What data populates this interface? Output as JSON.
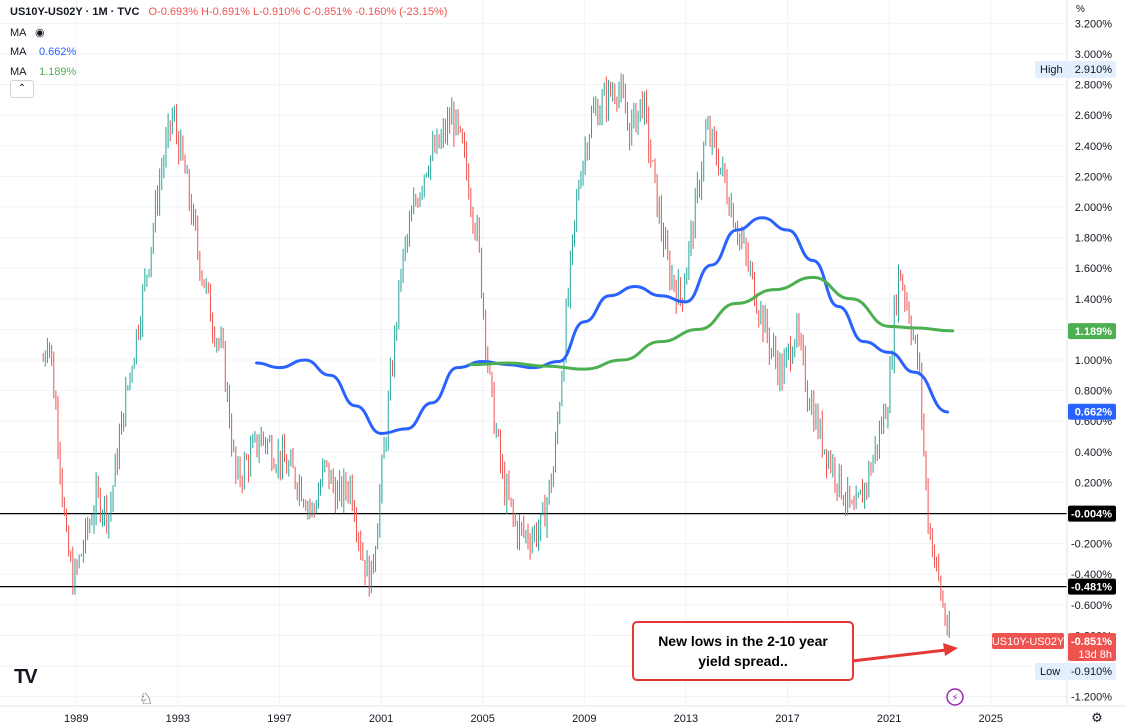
{
  "header": {
    "symbol": "US10Y-US02Y · 1M · TVC",
    "ohlc": "O-0.693% H-0.691% L-0.910% C-0.851% -0.160% (-23.15%)",
    "ma1_label": "MA",
    "ma1_value": "0.662%",
    "ma2_label": "MA",
    "ma2_value": "1.189%",
    "collapse_icon": "chevron-up-icon"
  },
  "price_axis": {
    "unit": "%",
    "ticks": [
      "3.200%",
      "3.000%",
      "2.800%",
      "2.600%",
      "2.400%",
      "2.200%",
      "2.000%",
      "1.800%",
      "1.600%",
      "1.400%",
      "1.000%",
      "0.800%",
      "0.600%",
      "0.400%",
      "0.200%",
      "-0.200%",
      "-0.400%",
      "-0.600%",
      "-0.800%",
      "-1.200%"
    ],
    "tags": {
      "high_label": "High",
      "high_value": "2.910%",
      "ma_slow": "1.189%",
      "ma_fast": "0.662%",
      "level1": "-0.004%",
      "level2": "-0.481%",
      "symbol_tag": "US10Y-US02Y",
      "last": "-0.851%",
      "countdown": "13d 8h",
      "low_label": "Low",
      "low_value": "-0.910%"
    }
  },
  "time_axis": {
    "ticks": [
      "1989",
      "1993",
      "1997",
      "2001",
      "2005",
      "2009",
      "2013",
      "2017",
      "2021",
      "2025"
    ]
  },
  "annotation": {
    "text": "New lows in the 2-10 year yield spread.."
  },
  "colors": {
    "up": "#26a69a",
    "down": "#ef5350",
    "ma_fast": "#2962ff",
    "ma_slow": "#4caf50",
    "arrow": "#e53935"
  },
  "chart_data": {
    "type": "candlestick",
    "title": "US10Y-US02Y · 1M · TVC",
    "ylabel": "%",
    "ylim": [
      -1.2,
      3.2
    ],
    "xlim": [
      1986.0,
      2028.0
    ],
    "x_ticks": [
      1989,
      1993,
      1997,
      2001,
      2005,
      2009,
      2013,
      2017,
      2021,
      2025
    ],
    "horizontal_lines": [
      -0.004,
      -0.481
    ],
    "price_path": [
      [
        1987.7,
        1.0
      ],
      [
        1987.9,
        1.2
      ],
      [
        1988.3,
        0.5
      ],
      [
        1988.6,
        -0.2
      ],
      [
        1988.9,
        -0.45
      ],
      [
        1989.3,
        -0.2
      ],
      [
        1989.8,
        0.1
      ],
      [
        1990.3,
        0.0
      ],
      [
        1990.8,
        0.6
      ],
      [
        1991.3,
        1.1
      ],
      [
        1991.8,
        1.6
      ],
      [
        1992.3,
        2.2
      ],
      [
        1992.8,
        2.6
      ],
      [
        1993.3,
        2.2
      ],
      [
        1993.8,
        1.7
      ],
      [
        1994.3,
        1.3
      ],
      [
        1994.8,
        1.0
      ],
      [
        1995.3,
        0.2
      ],
      [
        1995.6,
        0.3
      ],
      [
        1996.3,
        0.5
      ],
      [
        1996.8,
        0.4
      ],
      [
        1997.3,
        0.3
      ],
      [
        1997.8,
        0.2
      ],
      [
        1998.3,
        0.0
      ],
      [
        1998.8,
        0.3
      ],
      [
        1999.3,
        0.1
      ],
      [
        1999.8,
        0.2
      ],
      [
        2000.3,
        -0.3
      ],
      [
        2000.6,
        -0.45
      ],
      [
        2001.0,
        0.2
      ],
      [
        2001.4,
        0.9
      ],
      [
        2001.8,
        1.6
      ],
      [
        2002.3,
        2.0
      ],
      [
        2002.8,
        2.3
      ],
      [
        2003.3,
        2.4
      ],
      [
        2003.8,
        2.6
      ],
      [
        2004.3,
        2.3
      ],
      [
        2004.8,
        1.8
      ],
      [
        2005.3,
        0.8
      ],
      [
        2005.8,
        0.2
      ],
      [
        2006.3,
        -0.1
      ],
      [
        2006.8,
        -0.15
      ],
      [
        2007.3,
        -0.1
      ],
      [
        2007.8,
        0.3
      ],
      [
        2008.3,
        1.3
      ],
      [
        2008.8,
        2.2
      ],
      [
        2009.3,
        2.6
      ],
      [
        2009.8,
        2.7
      ],
      [
        2010.3,
        2.8
      ],
      [
        2010.8,
        2.5
      ],
      [
        2011.3,
        2.7
      ],
      [
        2011.8,
        2.1
      ],
      [
        2012.3,
        1.6
      ],
      [
        2012.8,
        1.4
      ],
      [
        2013.3,
        1.9
      ],
      [
        2013.8,
        2.5
      ],
      [
        2014.3,
        2.3
      ],
      [
        2014.8,
        2.0
      ],
      [
        2015.3,
        1.7
      ],
      [
        2015.8,
        1.4
      ],
      [
        2016.3,
        1.1
      ],
      [
        2016.8,
        0.9
      ],
      [
        2017.3,
        1.2
      ],
      [
        2017.8,
        0.8
      ],
      [
        2018.3,
        0.5
      ],
      [
        2018.8,
        0.3
      ],
      [
        2019.3,
        0.1
      ],
      [
        2019.6,
        -0.04
      ],
      [
        2020.1,
        0.2
      ],
      [
        2020.6,
        0.5
      ],
      [
        2021.0,
        0.8
      ],
      [
        2021.2,
        1.3
      ],
      [
        2021.4,
        1.6
      ],
      [
        2021.8,
        1.3
      ],
      [
        2022.2,
        0.9
      ],
      [
        2022.5,
        0.0
      ],
      [
        2022.8,
        -0.3
      ],
      [
        2023.1,
        -0.6
      ],
      [
        2023.4,
        -0.85
      ]
    ],
    "series": [
      {
        "name": "MA",
        "last": 0.662,
        "points": [
          [
            1996.1,
            0.98
          ],
          [
            1997.0,
            0.95
          ],
          [
            1998.0,
            1.0
          ],
          [
            1999.0,
            0.9
          ],
          [
            2000.0,
            0.7
          ],
          [
            2001.0,
            0.52
          ],
          [
            2002.0,
            0.55
          ],
          [
            2003.0,
            0.72
          ],
          [
            2004.0,
            0.95
          ],
          [
            2005.0,
            0.99
          ],
          [
            2006.0,
            0.97
          ],
          [
            2007.0,
            0.95
          ],
          [
            2008.0,
            0.99
          ],
          [
            2009.0,
            1.25
          ],
          [
            2010.0,
            1.42
          ],
          [
            2011.0,
            1.48
          ],
          [
            2012.0,
            1.42
          ],
          [
            2013.0,
            1.38
          ],
          [
            2014.0,
            1.62
          ],
          [
            2015.0,
            1.85
          ],
          [
            2016.0,
            1.93
          ],
          [
            2017.0,
            1.85
          ],
          [
            2018.0,
            1.65
          ],
          [
            2019.0,
            1.35
          ],
          [
            2020.0,
            1.12
          ],
          [
            2021.0,
            1.05
          ],
          [
            2022.0,
            0.92
          ],
          [
            2023.3,
            0.66
          ]
        ]
      },
      {
        "name": "MA",
        "last": 1.189,
        "points": [
          [
            2004.5,
            0.97
          ],
          [
            2006.0,
            0.98
          ],
          [
            2007.5,
            0.96
          ],
          [
            2009.0,
            0.94
          ],
          [
            2010.5,
            1.0
          ],
          [
            2012.0,
            1.12
          ],
          [
            2013.5,
            1.2
          ],
          [
            2015.0,
            1.37
          ],
          [
            2016.5,
            1.46
          ],
          [
            2018.0,
            1.54
          ],
          [
            2019.5,
            1.4
          ],
          [
            2021.0,
            1.22
          ],
          [
            2022.0,
            1.21
          ],
          [
            2023.5,
            1.19
          ]
        ]
      }
    ],
    "last": -0.851,
    "high": 2.91,
    "low": -0.91
  }
}
